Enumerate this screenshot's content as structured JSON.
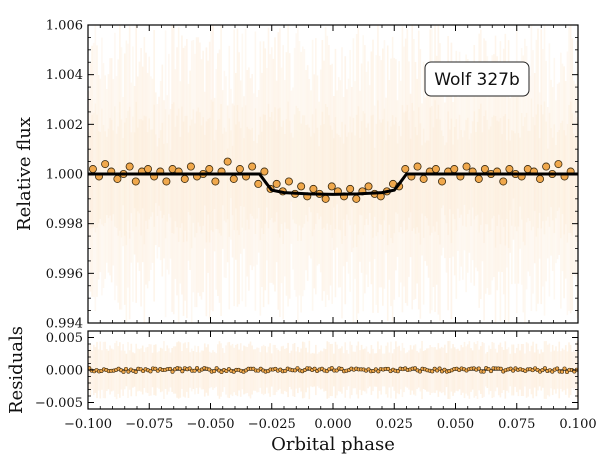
{
  "chart_data": {
    "type": "scatter",
    "label_box": "Wolf 327b",
    "xlabel": "Orbital phase",
    "xlim": [
      -0.1,
      0.1
    ],
    "xticks": [
      "−0.100",
      "−0.075",
      "−0.050",
      "−0.025",
      "0.000",
      "0.025",
      "0.050",
      "0.075",
      "0.100"
    ],
    "colors": {
      "points": "#f0a84c",
      "point_edge": "#3a2a10",
      "model": "#000000",
      "band": "#f5a54a"
    },
    "top_panel": {
      "ylabel": "Relative flux",
      "ylim": [
        0.994,
        1.006
      ],
      "yticks": [
        "0.994",
        "0.996",
        "0.998",
        "1.000",
        "1.002",
        "1.004",
        "1.006"
      ],
      "model": {
        "x": [
          -0.1,
          -0.03,
          -0.027,
          -0.025,
          -0.02,
          -0.01,
          0.0,
          0.01,
          0.02,
          0.025,
          0.027,
          0.03,
          0.1
        ],
        "y": [
          1.0,
          1.0,
          0.9996,
          0.99935,
          0.99925,
          0.9992,
          0.99918,
          0.9992,
          0.99925,
          0.99935,
          0.9996,
          1.0,
          1.0
        ]
      },
      "points": {
        "x": [
          -0.098,
          -0.0955,
          -0.093,
          -0.0905,
          -0.088,
          -0.0855,
          -0.083,
          -0.0805,
          -0.078,
          -0.0755,
          -0.073,
          -0.0705,
          -0.068,
          -0.0655,
          -0.063,
          -0.0605,
          -0.058,
          -0.0555,
          -0.053,
          -0.0505,
          -0.048,
          -0.0455,
          -0.043,
          -0.0405,
          -0.038,
          -0.0355,
          -0.033,
          -0.0305,
          -0.028,
          -0.0255,
          -0.023,
          -0.0205,
          -0.018,
          -0.0155,
          -0.013,
          -0.0105,
          -0.008,
          -0.0055,
          -0.003,
          -0.0005,
          0.002,
          0.0045,
          0.007,
          0.0095,
          0.012,
          0.0145,
          0.017,
          0.0195,
          0.022,
          0.0245,
          0.027,
          0.0295,
          0.032,
          0.0345,
          0.037,
          0.0395,
          0.042,
          0.0445,
          0.047,
          0.0495,
          0.052,
          0.0545,
          0.057,
          0.0595,
          0.062,
          0.0645,
          0.067,
          0.0695,
          0.072,
          0.0745,
          0.077,
          0.0795,
          0.082,
          0.0845,
          0.087,
          0.0895,
          0.092,
          0.0945,
          0.097
        ],
        "y": [
          1.0002,
          0.9999,
          1.0004,
          1.0001,
          0.9998,
          1.0,
          1.0003,
          0.9997,
          1.0001,
          1.0002,
          0.9999,
          1.0001,
          0.9997,
          1.0002,
          1.0001,
          0.9998,
          1.0003,
          0.9999,
          1.0,
          1.0002,
          0.9997,
          1.0001,
          1.0005,
          0.9998,
          1.0002,
          0.9999,
          1.0003,
          0.9996,
          1.0001,
          0.9994,
          0.9996,
          0.9993,
          0.9997,
          0.9992,
          0.9995,
          0.9991,
          0.9994,
          0.9992,
          0.999,
          0.9995,
          0.9993,
          0.9991,
          0.9994,
          0.999,
          0.9993,
          0.9995,
          0.9992,
          0.9991,
          0.9993,
          0.9996,
          0.9995,
          1.0002,
          0.9999,
          1.0003,
          0.9998,
          1.0001,
          1.0002,
          0.9997,
          1.0001,
          1.0002,
          0.9999,
          1.0003,
          1.0001,
          0.9998,
          1.0002,
          1.0,
          1.0001,
          0.9997,
          1.0002,
          1.0,
          0.9999,
          1.0002,
          1.0001,
          0.9998,
          1.0003,
          1.0,
          1.0004,
          0.9999,
          1.0001
        ]
      }
    },
    "bottom_panel": {
      "ylabel": "Residuals",
      "ylim": [
        -0.006,
        0.006
      ],
      "yticks": [
        "−0.005",
        "0.000",
        "0.005"
      ],
      "zero_line": 0.0,
      "points_note": "residuals scatter tightly around 0 for ~200 points across the full phase range"
    }
  }
}
